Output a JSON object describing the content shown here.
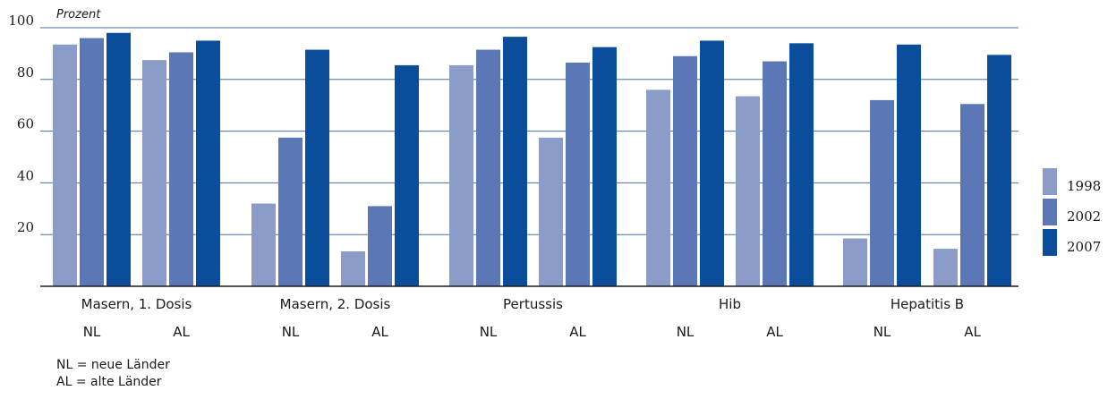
{
  "chart_data": {
    "type": "bar",
    "ylabel": "Prozent",
    "ylim": [
      0,
      100
    ],
    "yticks": [
      20,
      40,
      60,
      80,
      100
    ],
    "categories": [
      "Masern, 1. Dosis",
      "Masern, 2. Dosis",
      "Pertussis",
      "Hib",
      "Hepatitis B"
    ],
    "groups": [
      "NL",
      "AL"
    ],
    "series": [
      {
        "name": "1998",
        "color": "#8c9cc9",
        "values": [
          [
            93.5,
            87.5
          ],
          [
            32,
            13.5
          ],
          [
            85.5,
            57.5
          ],
          [
            76,
            73.5
          ],
          [
            18.5,
            14.5
          ]
        ]
      },
      {
        "name": "2002",
        "color": "#5b77b6",
        "values": [
          [
            96,
            90.5
          ],
          [
            57.5,
            31
          ],
          [
            91.5,
            86.5
          ],
          [
            89,
            87
          ],
          [
            72,
            70.5
          ]
        ]
      },
      {
        "name": "2007",
        "color": "#0a4d9b",
        "values": [
          [
            98,
            95
          ],
          [
            91.5,
            85.5
          ],
          [
            96.5,
            92.5
          ],
          [
            95,
            94
          ],
          [
            93.5,
            89.5
          ]
        ]
      }
    ],
    "grid": true,
    "legend": "right"
  },
  "footnotes": [
    "NL = neue Länder",
    "AL = alte Länder"
  ]
}
